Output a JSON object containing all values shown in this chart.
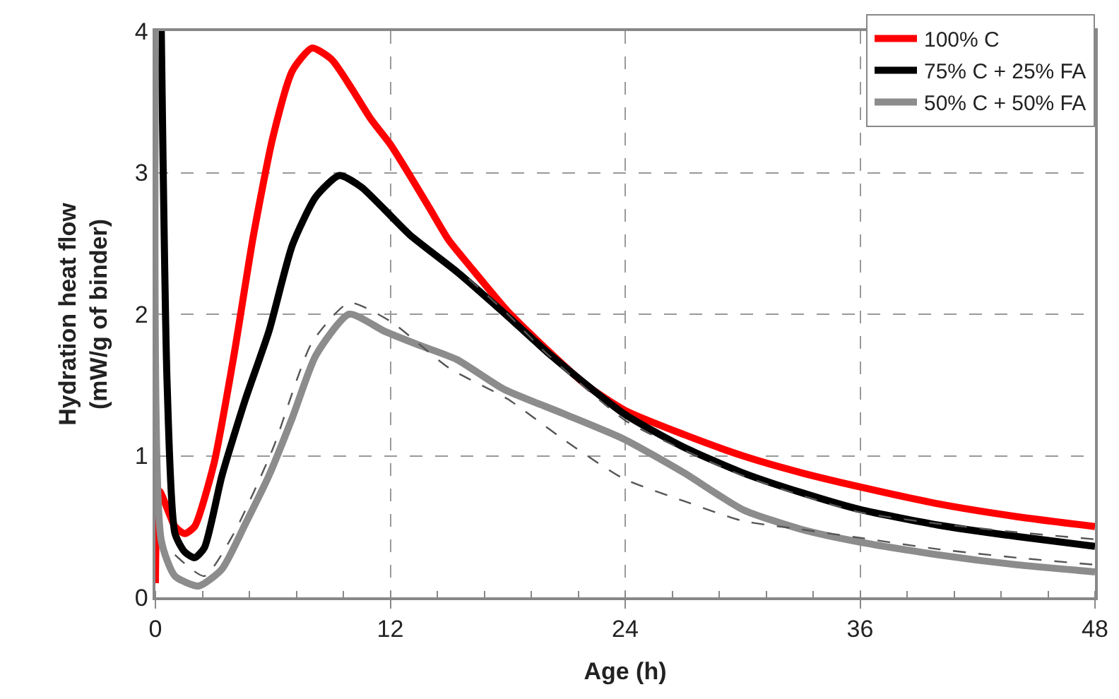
{
  "chart_data": {
    "type": "line",
    "xlabel": "Age (h)",
    "ylabel": "Hydration heat flow\n(mW/g of binder)",
    "xlim": [
      0,
      48
    ],
    "ylim": [
      0,
      4
    ],
    "xticks": [
      0,
      12,
      24,
      36,
      48
    ],
    "yticks": [
      0,
      1,
      2,
      3,
      4
    ],
    "grid": true,
    "legend": "top right",
    "line_style": "solid",
    "series": [
      {
        "name": "100% C",
        "color": "#ff0000",
        "x": [
          0,
          0.2,
          1,
          1.5,
          2,
          3,
          4,
          5,
          6,
          7,
          8,
          9,
          10,
          11,
          12,
          13,
          14,
          15,
          16,
          18,
          20,
          22,
          24,
          27,
          30,
          33,
          36,
          40,
          44,
          48
        ],
        "values": [
          0.1,
          0.75,
          0.5,
          0.45,
          0.5,
          0.95,
          1.7,
          2.55,
          3.25,
          3.72,
          3.88,
          3.8,
          3.6,
          3.38,
          3.2,
          2.98,
          2.75,
          2.52,
          2.35,
          2.02,
          1.75,
          1.5,
          1.32,
          1.15,
          1.0,
          0.88,
          0.78,
          0.66,
          0.57,
          0.5
        ]
      },
      {
        "name": "75% C + 25% FA",
        "color": "#000000",
        "x": [
          0.3,
          0.6,
          1,
          1.5,
          2,
          2.5,
          3.4,
          4.6,
          5.8,
          7,
          8.2,
          9.4,
          10.5,
          11.7,
          13,
          15.4,
          17.8,
          20.2,
          23.9,
          27,
          30,
          33,
          36,
          40,
          44,
          48
        ],
        "values": [
          4,
          1.5,
          0.45,
          0.32,
          0.28,
          0.35,
          0.86,
          1.4,
          1.88,
          2.49,
          2.83,
          2.98,
          2.9,
          2.74,
          2.56,
          2.3,
          2.01,
          1.71,
          1.3,
          1.06,
          0.88,
          0.74,
          0.62,
          0.51,
          0.43,
          0.36
        ]
      },
      {
        "name": "50% C + 50% FA",
        "color": "#8c8c8c",
        "x": [
          0,
          0.3,
          1,
          2.2,
          3.4,
          4.6,
          5.8,
          7,
          8.2,
          9.9,
          11.7,
          13.5,
          15.4,
          17.8,
          20.8,
          23.9,
          27,
          30,
          33,
          36,
          40,
          44,
          48
        ],
        "values": [
          4,
          0.4,
          0.15,
          0.08,
          0.2,
          0.52,
          0.86,
          1.27,
          1.71,
          2.0,
          1.88,
          1.78,
          1.68,
          1.47,
          1.3,
          1.12,
          0.88,
          0.62,
          0.48,
          0.39,
          0.3,
          0.23,
          0.18
        ]
      },
      {
        "color": "#555555",
        "line_style": "dashed",
        "x": [
          1,
          2.5,
          4,
          6,
          8,
          9.9,
          12,
          15,
          18,
          21,
          23.9,
          27,
          30,
          33,
          36,
          40,
          44,
          48
        ],
        "values": [
          0.3,
          0.15,
          0.45,
          1.05,
          1.8,
          2.08,
          1.95,
          1.62,
          1.4,
          1.1,
          0.84,
          0.68,
          0.54,
          0.48,
          0.42,
          0.34,
          0.28,
          0.23
        ]
      },
      {
        "color": "#555555",
        "line_style": "dashed",
        "x": [
          16,
          18,
          20,
          24,
          27,
          30,
          33,
          36,
          40,
          44,
          48
        ],
        "values": [
          2.25,
          2.0,
          1.72,
          1.25,
          1.04,
          0.86,
          0.72,
          0.6,
          0.52,
          0.46,
          0.41
        ]
      }
    ]
  }
}
